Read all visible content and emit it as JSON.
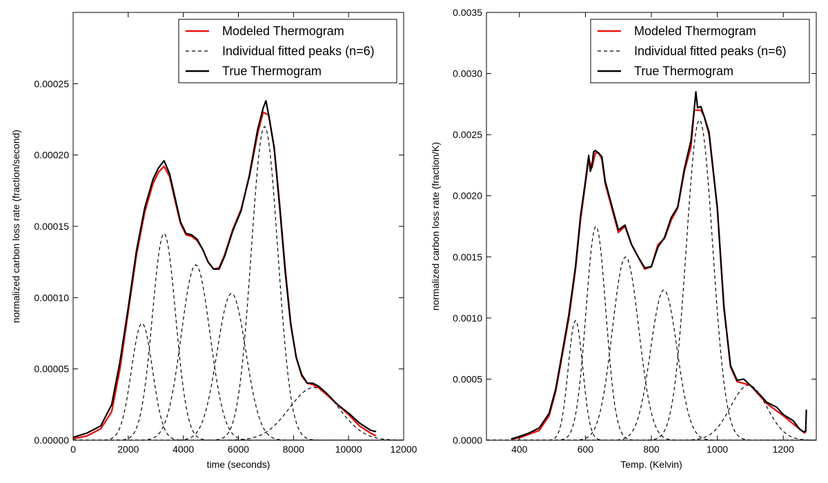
{
  "chart_data": [
    {
      "type": "line",
      "title": "",
      "xlabel": "time (seconds)",
      "ylabel": "normalized carbon loss rate (fraction/second)",
      "xlim": [
        0,
        12000
      ],
      "ylim": [
        0,
        0.0003
      ],
      "xticks": [
        "0",
        "2000",
        "4000",
        "6000",
        "8000",
        "10000",
        "12000"
      ],
      "xtick_values": [
        0,
        2000,
        4000,
        6000,
        8000,
        10000,
        12000
      ],
      "yticks": [
        "0.00000",
        "0.00005",
        "0.00010",
        "0.00015",
        "0.00020",
        "0.00025"
      ],
      "ytick_values": [
        0,
        5e-05,
        0.0001,
        0.00015,
        0.0002,
        0.00025
      ],
      "legend_position": "top-right",
      "legend": [
        {
          "label": "Modeled Thermogram",
          "color": "#e8120c",
          "style": "solid"
        },
        {
          "label": "Individual fitted peaks (n=6)",
          "color": "#000000",
          "style": "dashed"
        },
        {
          "label": "True Thermogram",
          "color": "#000000",
          "style": "solid"
        }
      ],
      "series": [
        {
          "name": "Modeled Thermogram",
          "color": "#e8120c",
          "style": "solid",
          "x": [
            0,
            500,
            1000,
            1400,
            1700,
            2000,
            2300,
            2600,
            2900,
            3100,
            3300,
            3500,
            3700,
            3900,
            4100,
            4300,
            4500,
            4700,
            4900,
            5100,
            5300,
            5500,
            5800,
            6100,
            6400,
            6700,
            6900,
            7100,
            7300,
            7500,
            7700,
            7900,
            8100,
            8300,
            8500,
            8700,
            8900,
            9200,
            9600,
            10000,
            10400,
            10800,
            11000
          ],
          "y": [
            1e-06,
            3e-06,
            8e-06,
            2e-05,
            5e-05,
            9e-05,
            0.00013,
            0.00016,
            0.00018,
            0.000188,
            0.000192,
            0.000185,
            0.000168,
            0.000152,
            0.000144,
            0.000143,
            0.00014,
            0.000134,
            0.000125,
            0.00012,
            0.000121,
            0.00013,
            0.000148,
            0.000162,
            0.000185,
            0.000215,
            0.00023,
            0.000228,
            0.000205,
            0.000165,
            0.00012,
            8.2e-05,
            5.8e-05,
            4.5e-05,
            4e-05,
            3.9e-05,
            3.7e-05,
            3.2e-05,
            2.5e-05,
            1.8e-05,
            1e-05,
            5e-06,
            3e-06
          ]
        },
        {
          "name": "True Thermogram",
          "color": "#000000",
          "style": "solid",
          "x": [
            0,
            500,
            1000,
            1400,
            1700,
            2000,
            2300,
            2600,
            2900,
            3100,
            3300,
            3500,
            3700,
            3900,
            4100,
            4300,
            4500,
            4700,
            4900,
            5100,
            5300,
            5500,
            5800,
            6100,
            6400,
            6700,
            6900,
            7000,
            7100,
            7300,
            7500,
            7700,
            7900,
            8100,
            8300,
            8500,
            8700,
            8900,
            9200,
            9600,
            10000,
            10400,
            10800,
            11000
          ],
          "y": [
            2e-06,
            5e-06,
            1e-05,
            2.5e-05,
            5.5e-05,
            9.3e-05,
            0.000133,
            0.000163,
            0.000183,
            0.000191,
            0.000196,
            0.000187,
            0.00017,
            0.000153,
            0.000145,
            0.000144,
            0.000141,
            0.000134,
            0.000125,
            0.00012,
            0.00012,
            0.000129,
            0.000147,
            0.000161,
            0.000186,
            0.000218,
            0.000233,
            0.000238,
            0.000228,
            0.000205,
            0.000163,
            0.000118,
            8.1e-05,
            5.8e-05,
            4.6e-05,
            4e-05,
            4e-05,
            3.8e-05,
            3.3e-05,
            2.5e-05,
            1.9e-05,
            1.2e-05,
            7e-06,
            6e-06
          ]
        }
      ],
      "peaks": [
        {
          "center": 2500,
          "sigma": 380,
          "height": 8.2e-05
        },
        {
          "center": 3300,
          "sigma": 420,
          "height": 0.000145
        },
        {
          "center": 4450,
          "sigma": 520,
          "height": 0.000123
        },
        {
          "center": 5750,
          "sigma": 520,
          "height": 0.000103
        },
        {
          "center": 6950,
          "sigma": 480,
          "height": 0.00022
        },
        {
          "center": 8750,
          "sigma": 900,
          "height": 3.7e-05
        }
      ]
    },
    {
      "type": "line",
      "title": "",
      "xlabel": "Temp. (Kelvin)",
      "ylabel": "normalized carbon loss rate (fraction/K)",
      "xlim": [
        300,
        1300
      ],
      "ylim": [
        0,
        0.0035
      ],
      "xticks": [
        "400",
        "600",
        "800",
        "1000",
        "1200"
      ],
      "xtick_values": [
        400,
        600,
        800,
        1000,
        1200
      ],
      "yticks": [
        "0.0000",
        "0.0005",
        "0.0010",
        "0.0015",
        "0.0020",
        "0.0025",
        "0.0030",
        "0.0035"
      ],
      "ytick_values": [
        0,
        0.0005,
        0.001,
        0.0015,
        0.002,
        0.0025,
        0.003,
        0.0035
      ],
      "legend_position": "top-right",
      "legend": [
        {
          "label": "Modeled Thermogram",
          "color": "#e8120c",
          "style": "solid"
        },
        {
          "label": "Individual fitted peaks (n=6)",
          "color": "#000000",
          "style": "dashed"
        },
        {
          "label": "True Thermogram",
          "color": "#000000",
          "style": "solid"
        }
      ],
      "series": [
        {
          "name": "Modeled Thermogram",
          "color": "#e8120c",
          "style": "solid",
          "x": [
            375,
            400,
            430,
            460,
            490,
            510,
            530,
            550,
            570,
            585,
            600,
            610,
            620,
            630,
            640,
            650,
            660,
            680,
            700,
            720,
            740,
            760,
            780,
            800,
            820,
            840,
            860,
            880,
            900,
            920,
            930,
            940,
            950,
            960,
            975,
            1000,
            1020,
            1040,
            1060,
            1100,
            1150,
            1200,
            1250,
            1265,
            1270
          ],
          "y": [
            1e-05,
            2e-05,
            5e-05,
            8e-05,
            0.0002,
            0.0004,
            0.0007,
            0.001,
            0.0014,
            0.0018,
            0.0021,
            0.0023,
            0.00223,
            0.00235,
            0.00235,
            0.0023,
            0.0021,
            0.0019,
            0.0017,
            0.00175,
            0.0016,
            0.0015,
            0.0014,
            0.00142,
            0.0016,
            0.00165,
            0.0018,
            0.0019,
            0.0022,
            0.0024,
            0.0027,
            0.0027,
            0.0027,
            0.00265,
            0.0025,
            0.0019,
            0.0011,
            0.0006,
            0.00048,
            0.00045,
            0.0003,
            0.0002,
            9e-05,
            6e-05,
            8e-05
          ]
        },
        {
          "name": "True Thermogram",
          "color": "#000000",
          "style": "solid",
          "x": [
            375,
            400,
            430,
            460,
            490,
            510,
            530,
            550,
            570,
            585,
            600,
            610,
            615,
            620,
            625,
            630,
            640,
            650,
            660,
            680,
            700,
            720,
            740,
            760,
            780,
            800,
            820,
            840,
            860,
            880,
            900,
            920,
            930,
            935,
            940,
            950,
            960,
            975,
            1000,
            1020,
            1040,
            1060,
            1080,
            1100,
            1130,
            1150,
            1180,
            1200,
            1230,
            1250,
            1260,
            1265,
            1268,
            1270
          ],
          "y": [
            1e-05,
            3e-05,
            6e-05,
            0.0001,
            0.00022,
            0.00042,
            0.00072,
            0.00103,
            0.00142,
            0.00183,
            0.00212,
            0.00233,
            0.0022,
            0.00225,
            0.00236,
            0.00237,
            0.00235,
            0.00232,
            0.00212,
            0.00192,
            0.00172,
            0.00176,
            0.0016,
            0.0015,
            0.00141,
            0.00142,
            0.00158,
            0.00166,
            0.00182,
            0.00191,
            0.00222,
            0.00245,
            0.00271,
            0.00285,
            0.00272,
            0.00273,
            0.00265,
            0.00252,
            0.0019,
            0.00108,
            0.00061,
            0.00049,
            0.0005,
            0.00045,
            0.00037,
            0.00031,
            0.00027,
            0.00021,
            0.00016,
            9e-05,
            7e-05,
            7e-05,
            8e-05,
            0.00025
          ]
        }
      ],
      "peaks": [
        {
          "center": 570,
          "sigma": 22,
          "height": 0.00098
        },
        {
          "center": 632,
          "sigma": 30,
          "height": 0.00175
        },
        {
          "center": 722,
          "sigma": 40,
          "height": 0.0015
        },
        {
          "center": 838,
          "sigma": 40,
          "height": 0.00123
        },
        {
          "center": 946,
          "sigma": 40,
          "height": 0.00262
        },
        {
          "center": 1095,
          "sigma": 55,
          "height": 0.00045
        }
      ]
    }
  ]
}
